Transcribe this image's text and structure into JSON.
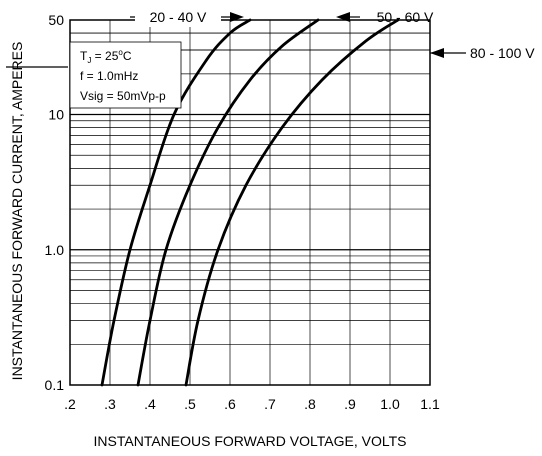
{
  "chart_data": {
    "type": "line",
    "title": "",
    "xlabel": "INSTANTANEOUS FORWARD VOLTAGE, VOLTS",
    "ylabel": "INSTANTANEOUS FORWARD CURRENT, AMPERES",
    "xscale": "linear",
    "yscale": "log",
    "xlim": [
      0.2,
      1.1
    ],
    "ylim": [
      0.1,
      50
    ],
    "grid": true,
    "x_tick_labels": [
      ".2",
      ".3",
      ".4",
      ".5",
      ".6",
      ".7",
      ".8",
      ".9",
      "1.0",
      "1.1"
    ],
    "x_ticks": [
      0.2,
      0.3,
      0.4,
      0.5,
      0.6,
      0.7,
      0.8,
      0.9,
      1.0,
      1.1
    ],
    "y_tick_labels": [
      "0.1",
      "1.0",
      "10",
      "50"
    ],
    "y_ticks": [
      0.1,
      1.0,
      10,
      50
    ],
    "series": [
      {
        "name": "20 - 40 V",
        "x": [
          0.28,
          0.31,
          0.35,
          0.4,
          0.46,
          0.54,
          0.6,
          0.65
        ],
        "y": [
          0.1,
          0.3,
          1.0,
          3.0,
          10,
          25,
          40,
          50
        ]
      },
      {
        "name": "50 - 60 V",
        "x": [
          0.37,
          0.4,
          0.44,
          0.5,
          0.57,
          0.65,
          0.73,
          0.82
        ],
        "y": [
          0.1,
          0.3,
          1.0,
          3.0,
          8.0,
          18,
          32,
          50
        ]
      },
      {
        "name": "80 - 100 V",
        "x": [
          0.49,
          0.52,
          0.57,
          0.64,
          0.73,
          0.83,
          0.94,
          1.02
        ],
        "y": [
          0.1,
          0.3,
          1.0,
          3.0,
          8.0,
          18,
          35,
          50
        ]
      }
    ],
    "annotations": {
      "conditions": [
        "T",
        "J",
        " = 25",
        "o",
        "C",
        "f = 1.0mHz",
        "Vsig = 50mVp-p"
      ]
    }
  }
}
